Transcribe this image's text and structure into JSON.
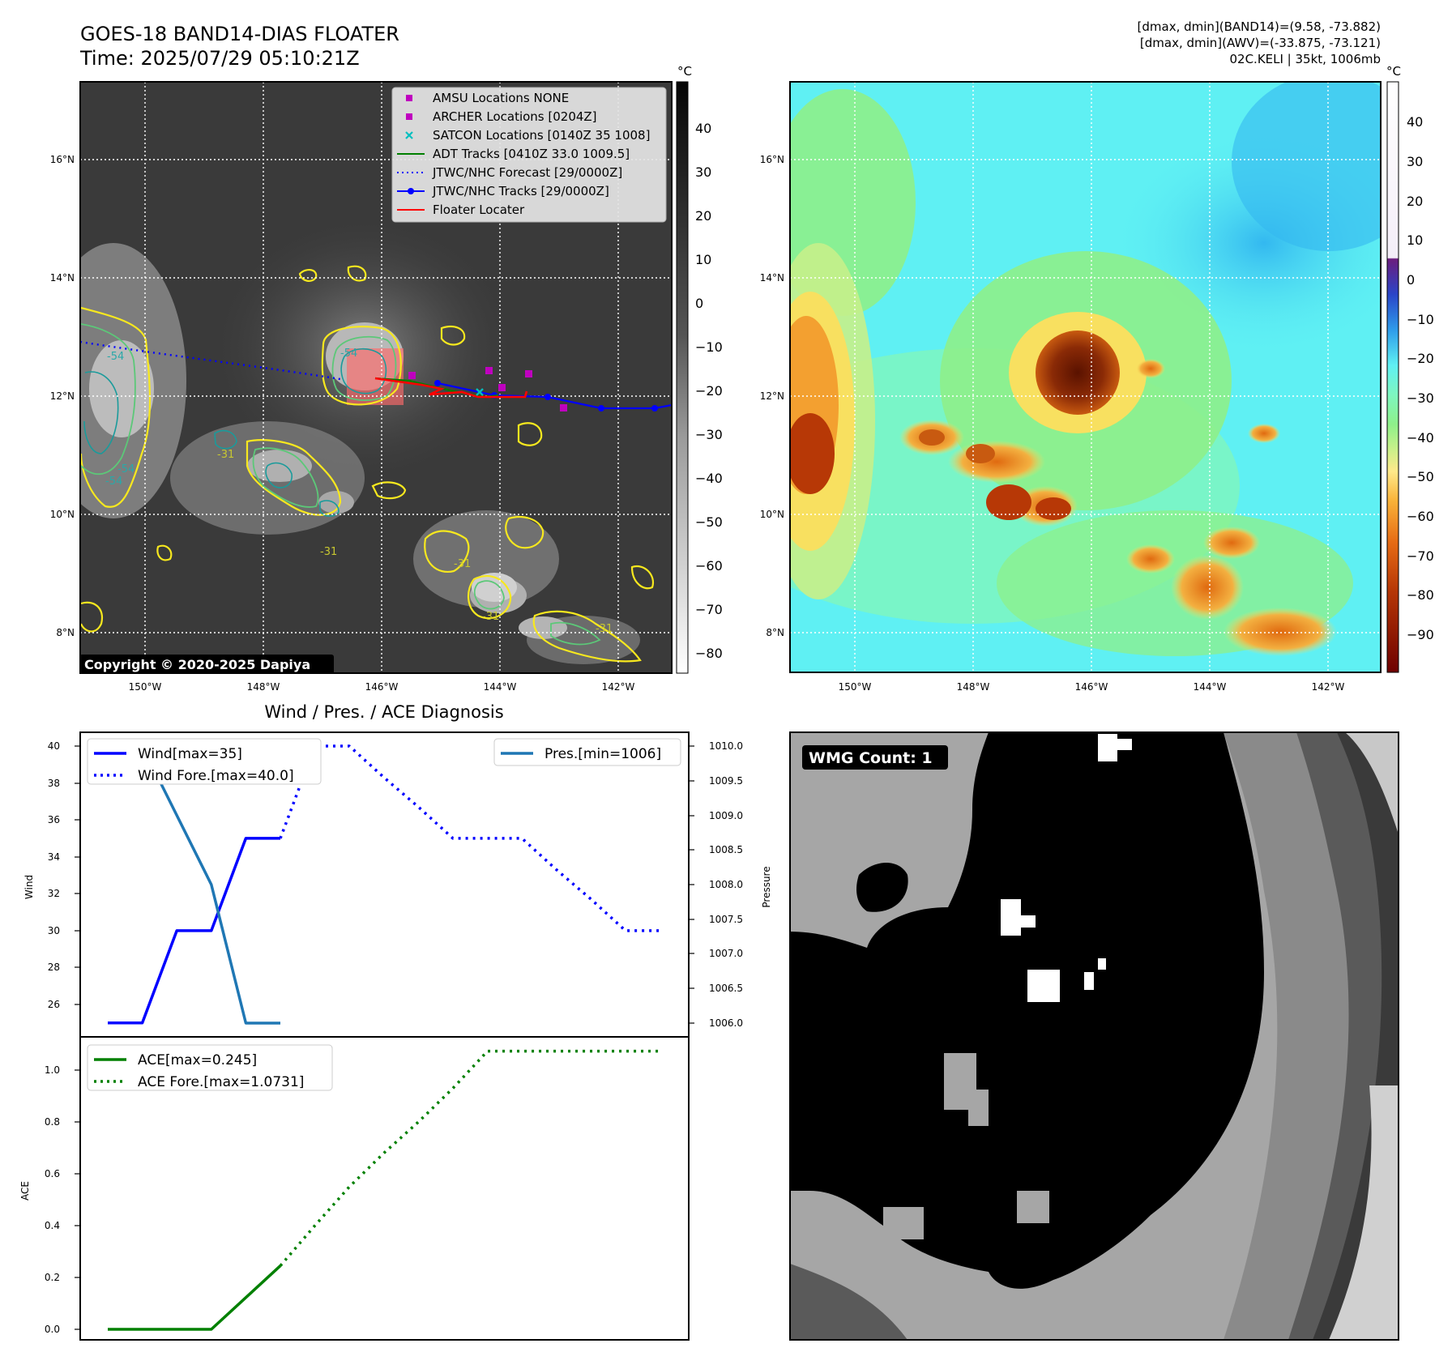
{
  "header": {
    "title_line1": "GOES-18 BAND14-DIAS FLOATER",
    "title_line2": "Time: 2025/07/29 05:10:21Z",
    "stats_line1": "[dmax, dmin](BAND14)=(9.58, -73.882)",
    "stats_line2": "[dmax, dmin](AWV)=(-33.875, -73.121)",
    "stats_line3": "02C.KELI | 35kt, 1006mb"
  },
  "ir_map": {
    "lat_labels": [
      "16°N",
      "14°N",
      "12°N",
      "10°N",
      "8°N"
    ],
    "lon_labels": [
      "150°W",
      "148°W",
      "146°W",
      "144°W",
      "142°W"
    ],
    "copyright": "Copyright © 2020-2025 Dapiya",
    "colorbar_unit": "°C",
    "colorbar_ticks": [
      "40",
      "30",
      "20",
      "10",
      "0",
      "−10",
      "−20",
      "−30",
      "−40",
      "−50",
      "−60",
      "−70",
      "−80"
    ],
    "contour_labels": [
      "-54",
      "-54",
      "-31",
      "-54",
      "-31",
      "-31",
      "-31",
      "-31",
      "-54"
    ],
    "legend": [
      {
        "label": "AMSU Locations NONE",
        "color": "#bf00bf",
        "kind": "square"
      },
      {
        "label": "ARCHER Locations [0204Z]",
        "color": "#bf00bf",
        "kind": "square"
      },
      {
        "label": "SATCON Locations [0140Z 35 1008]",
        "color": "#00bfbf",
        "kind": "x"
      },
      {
        "label": "ADT Tracks [0410Z 33.0 1009.5]",
        "color": "#008000",
        "kind": "line"
      },
      {
        "label": "JTWC/NHC Forecast [29/0000Z]",
        "color": "#0000ff",
        "kind": "dotted"
      },
      {
        "label": "JTWC/NHC Tracks [29/0000Z]",
        "color": "#0000ff",
        "kind": "line-dot"
      },
      {
        "label": "Floater Locater",
        "color": "#ff0000",
        "kind": "line"
      }
    ]
  },
  "wv_map": {
    "lat_labels": [
      "16°N",
      "14°N",
      "12°N",
      "10°N",
      "8°N"
    ],
    "lon_labels": [
      "150°W",
      "148°W",
      "146°W",
      "144°W",
      "142°W"
    ],
    "colorbar_unit": "°C",
    "colorbar_ticks": [
      "40",
      "30",
      "20",
      "10",
      "0",
      "−10",
      "−20",
      "−30",
      "−40",
      "−50",
      "−60",
      "−70",
      "−80",
      "−90"
    ]
  },
  "diag": {
    "title": "Wind / Pres. / ACE Diagnosis",
    "wind_ylabel": "Wind",
    "pres_ylabel": "Pressure",
    "ace_ylabel": "ACE",
    "wind_ticks": [
      "40",
      "38",
      "36",
      "34",
      "32",
      "30",
      "28",
      "26"
    ],
    "pres_ticks": [
      "1010.0",
      "1009.5",
      "1009.0",
      "1008.5",
      "1008.0",
      "1007.5",
      "1007.0",
      "1006.5",
      "1006.0"
    ],
    "ace_ticks": [
      "1.0",
      "0.8",
      "0.6",
      "0.4",
      "0.2",
      "0.0"
    ],
    "legend_wind": "Wind[max=35]",
    "legend_wind_fore": "Wind Fore.[max=40.0]",
    "legend_pres": "Pres.[min=1006]",
    "legend_ace": "ACE[max=0.245]",
    "legend_ace_fore": "ACE Fore.[max=1.0731]"
  },
  "wmg": {
    "label": "WMG Count: 1"
  },
  "chart_data": [
    {
      "type": "line",
      "title": "Wind / Pres. / ACE Diagnosis",
      "ylabel": "Wind",
      "ylim": [
        24.9,
        40.8
      ],
      "series": [
        {
          "name": "Wind[max=35]",
          "x": [
            0,
            1,
            2,
            3,
            4,
            5
          ],
          "values": [
            25,
            25,
            30,
            30,
            35,
            35
          ],
          "color": "#0000ff",
          "style": "solid"
        },
        {
          "name": "Wind Fore.[max=40.0]",
          "x": [
            5,
            6,
            7,
            8,
            9,
            10,
            11,
            12,
            13,
            14,
            15,
            16
          ],
          "values": [
            35,
            40,
            40,
            38.3,
            36.7,
            35,
            35,
            35,
            33.3,
            31.7,
            30,
            30
          ],
          "color": "#0000ff",
          "style": "dotted"
        }
      ]
    },
    {
      "type": "line",
      "ylabel": "Pressure",
      "ylim": [
        1005.9,
        1010.1
      ],
      "series": [
        {
          "name": "Pres.[min=1006]",
          "x": [
            0,
            1,
            2,
            3,
            4,
            5
          ],
          "values": [
            1010,
            1010,
            1009,
            1008,
            1006,
            1006
          ],
          "color": "#1f77b4",
          "style": "solid"
        }
      ]
    },
    {
      "type": "line",
      "ylabel": "ACE",
      "ylim": [
        -0.02,
        1.12
      ],
      "series": [
        {
          "name": "ACE[max=0.245]",
          "x": [
            0,
            1,
            2,
            3,
            4,
            5
          ],
          "values": [
            0,
            0,
            0,
            0,
            0.1225,
            0.245
          ],
          "color": "#008000",
          "style": "solid"
        },
        {
          "name": "ACE Fore.[max=1.0731]",
          "x": [
            5,
            6,
            7,
            8,
            9,
            10,
            11,
            12,
            13,
            14,
            15,
            16
          ],
          "values": [
            0.245,
            0.4,
            0.55,
            0.68,
            0.8,
            0.93,
            1.0731,
            1.0731,
            1.0731,
            1.0731,
            1.0731,
            1.0731
          ],
          "color": "#008000",
          "style": "dotted"
        }
      ]
    }
  ]
}
